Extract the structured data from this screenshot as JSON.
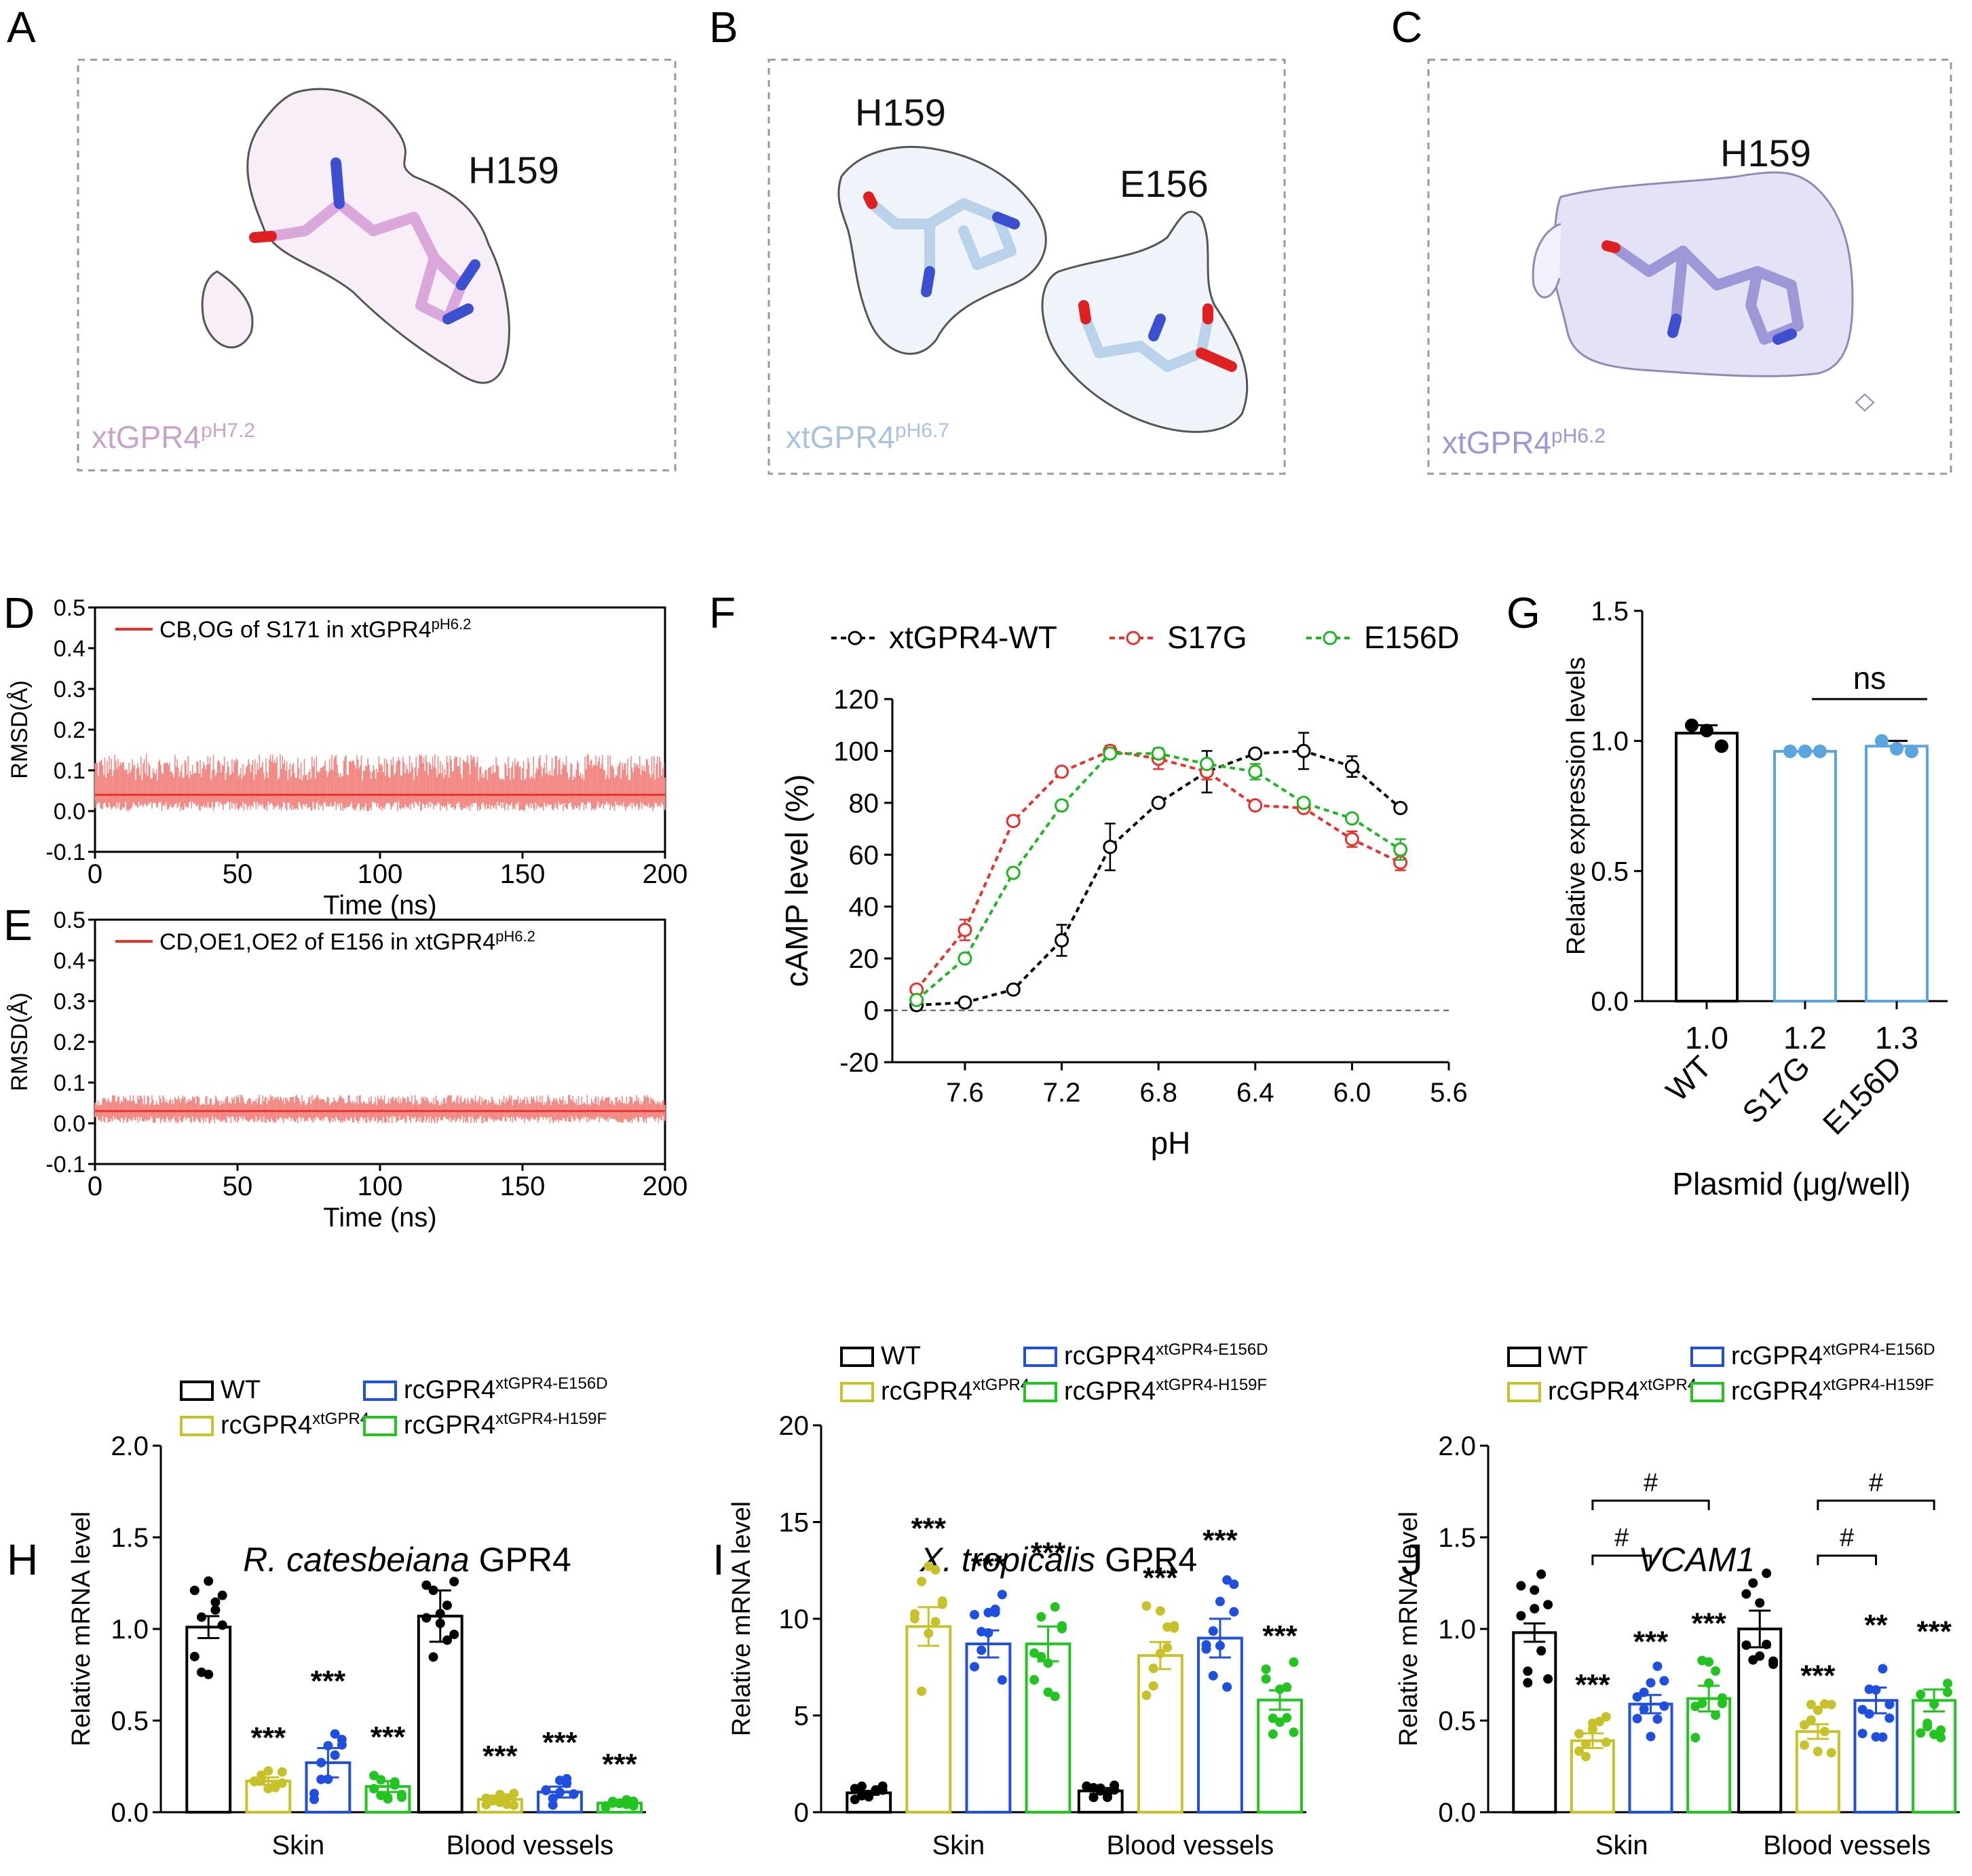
{
  "panels": {
    "A": {
      "letter": "A",
      "residue": "H159",
      "label": "xtGPR4",
      "sup": "pH7.2",
      "color": "#c9a3c9"
    },
    "B": {
      "letter": "B",
      "residues": [
        "H159",
        "E156"
      ],
      "label": "xtGPR4",
      "sup": "pH6.7",
      "color": "#a9c3dc"
    },
    "C": {
      "letter": "C",
      "residue": "H159",
      "label": "xtGPR4",
      "sup": "pH6.2",
      "color": "#9c97d6"
    }
  },
  "chart_data": [
    {
      "id": "D",
      "type": "line",
      "letter": "D",
      "xlabel": "Time (ns)",
      "ylabel": "RMSD(Å)",
      "xlim": [
        0,
        200
      ],
      "ylim": [
        -0.1,
        0.5
      ],
      "xticks": [
        0,
        50,
        100,
        150,
        200
      ],
      "yticks": [
        "-0.1",
        "0.0",
        "0.1",
        "0.2",
        "0.3",
        "0.4",
        "0.5"
      ],
      "legend": "CB,OG of S171 in xtGPR4",
      "legend_sup": "pH6.2",
      "series": [
        {
          "mean": 0.04,
          "noise_high": 0.14,
          "noise_low": 0.0,
          "color": "#e8312b"
        }
      ]
    },
    {
      "id": "E",
      "type": "line",
      "letter": "E",
      "xlabel": "Time (ns)",
      "ylabel": "RMSD(Å)",
      "xlim": [
        0,
        200
      ],
      "ylim": [
        -0.1,
        0.5
      ],
      "xticks": [
        0,
        50,
        100,
        150,
        200
      ],
      "yticks": [
        "-0.1",
        "0.0",
        "0.1",
        "0.2",
        "0.3",
        "0.4",
        "0.5"
      ],
      "legend": "CD,OE1,OE2 of E156 in xtGPR4",
      "legend_sup": "pH6.2",
      "series": [
        {
          "mean": 0.03,
          "noise_high": 0.07,
          "noise_low": 0.0,
          "color": "#e8312b"
        }
      ]
    },
    {
      "id": "F",
      "type": "line",
      "letter": "F",
      "xlabel": "pH",
      "ylabel": "cAMP level (%)",
      "xlim": [
        7.9,
        5.6
      ],
      "ylim": [
        -20,
        120
      ],
      "xticks": [
        "7.6",
        "7.2",
        "6.8",
        "6.4",
        "6.0",
        "5.6"
      ],
      "yticks": [
        "-20",
        "0",
        "20",
        "40",
        "60",
        "80",
        "100",
        "120"
      ],
      "x": [
        7.8,
        7.6,
        7.4,
        7.2,
        7.0,
        6.8,
        6.6,
        6.4,
        6.2,
        6.0,
        5.8
      ],
      "series": [
        {
          "name": "xtGPR4-WT",
          "color": "#000000",
          "values": [
            2,
            3,
            8,
            27,
            63,
            80,
            92,
            99,
            100,
            94,
            78
          ],
          "err": [
            0,
            0,
            0,
            6,
            9,
            0,
            8,
            0,
            7,
            4,
            0
          ]
        },
        {
          "name": "S17G",
          "color": "#e8312b",
          "values": [
            8,
            31,
            73,
            92,
            100,
            97,
            92,
            79,
            78,
            66,
            57
          ],
          "err": [
            0,
            4,
            0,
            0,
            2,
            4,
            3,
            0,
            0,
            3,
            3
          ]
        },
        {
          "name": "E156D",
          "color": "#22b523",
          "values": [
            4,
            20,
            53,
            79,
            99,
            99,
            95,
            92,
            80,
            74,
            62
          ],
          "err": [
            0,
            0,
            0,
            0,
            0,
            2,
            0,
            3,
            0,
            0,
            4
          ]
        }
      ]
    },
    {
      "id": "G",
      "type": "bar",
      "letter": "G",
      "xlabel": "Plasmid (μg/well)",
      "ylabel": "Relative expression levels",
      "ylim": [
        0,
        1.5
      ],
      "yticks": [
        "0.0",
        "0.5",
        "1.0",
        "1.5"
      ],
      "categories": [
        "WT",
        "S17G",
        "E156D"
      ],
      "doses": [
        "1.0",
        "1.2",
        "1.3"
      ],
      "values": [
        1.03,
        0.96,
        0.98
      ],
      "err": [
        0.03,
        0.0,
        0.02
      ],
      "points": [
        [
          1.06,
          1.04,
          0.98
        ],
        [
          0.96,
          0.96,
          0.96
        ],
        [
          1.0,
          0.97,
          0.96
        ]
      ],
      "colors": [
        "#000000",
        "#5aa5e0",
        "#5aa5e0"
      ],
      "annotation": "ns"
    },
    {
      "id": "H",
      "type": "bar",
      "letter": "H",
      "title_italic": "R. catesbeiana",
      "title_rest": " GPR4",
      "ylabel": "Relative mRNA level",
      "ylim": [
        0,
        2.0
      ],
      "yticks": [
        "0.0",
        "0.5",
        "1.0",
        "1.5",
        "2.0"
      ],
      "groups": [
        "Skin",
        "Blood vessels"
      ],
      "series": [
        {
          "name": "WT",
          "sup": "",
          "color": "#000000",
          "values": [
            1.01,
            1.07
          ],
          "err": [
            0.06,
            0.14
          ]
        },
        {
          "name": "rcGPR4",
          "sup": "xtGPR4",
          "color": "#c8c22a",
          "values": [
            0.17,
            0.07
          ],
          "err": [
            0.02,
            0.02
          ]
        },
        {
          "name": "rcGPR4",
          "sup": "xtGPR4-E156D",
          "color": "#1f4fe0",
          "values": [
            0.27,
            0.11
          ],
          "err": [
            0.08,
            0.03
          ]
        },
        {
          "name": "rcGPR4",
          "sup": "xtGPR4-H159F",
          "color": "#22c41f",
          "values": [
            0.14,
            0.05
          ],
          "err": [
            0.03,
            0.01
          ]
        }
      ],
      "sig": [
        [
          "",
          "***",
          "***",
          "***"
        ],
        [
          "",
          "***",
          "***",
          "***"
        ]
      ]
    },
    {
      "id": "I",
      "type": "bar",
      "letter": "I",
      "title_italic": "X. tropicalis",
      "title_rest": " GPR4",
      "ylabel": "Relative mRNA level",
      "ylim": [
        0,
        20
      ],
      "yticks": [
        "0",
        "5",
        "10",
        "15",
        "20"
      ],
      "groups": [
        "Skin",
        "Blood vessels"
      ],
      "series": [
        {
          "name": "WT",
          "sup": "",
          "color": "#000000",
          "values": [
            1.0,
            1.1
          ],
          "err": [
            0.1,
            0.15
          ]
        },
        {
          "name": "rcGPR4",
          "sup": "xtGPR4",
          "color": "#c8c22a",
          "values": [
            9.6,
            8.1
          ],
          "err": [
            1.0,
            0.7
          ]
        },
        {
          "name": "rcGPR4",
          "sup": "xtGPR4-E156D",
          "color": "#1f4fe0",
          "values": [
            8.7,
            9.0
          ],
          "err": [
            0.7,
            1.0
          ]
        },
        {
          "name": "rcGPR4",
          "sup": "xtGPR4-H159F",
          "color": "#22c41f",
          "values": [
            8.7,
            5.8
          ],
          "err": [
            0.9,
            0.5
          ]
        }
      ],
      "sig": [
        [
          "",
          "***",
          "***",
          "***"
        ],
        [
          "",
          "***",
          "***",
          "***"
        ]
      ]
    },
    {
      "id": "J",
      "type": "bar",
      "letter": "J",
      "title_italic": "VCAM1",
      "title_rest": "",
      "ylabel": "Relative mRNA level",
      "ylim": [
        0,
        2.0
      ],
      "yticks": [
        "0.0",
        "0.5",
        "1.0",
        "1.5",
        "2.0"
      ],
      "groups": [
        "Skin",
        "Blood vessels"
      ],
      "series": [
        {
          "name": "WT",
          "sup": "",
          "color": "#000000",
          "values": [
            0.98,
            1.0
          ],
          "err": [
            0.05,
            0.1
          ]
        },
        {
          "name": "rcGPR4",
          "sup": "xtGPR4",
          "color": "#c8c22a",
          "values": [
            0.39,
            0.44
          ],
          "err": [
            0.04,
            0.04
          ]
        },
        {
          "name": "rcGPR4",
          "sup": "xtGPR4-E156D",
          "color": "#1f4fe0",
          "values": [
            0.59,
            0.61
          ],
          "err": [
            0.05,
            0.07
          ]
        },
        {
          "name": "rcGPR4",
          "sup": "xtGPR4-H159F",
          "color": "#22c41f",
          "values": [
            0.62,
            0.61
          ],
          "err": [
            0.07,
            0.06
          ]
        }
      ],
      "sig": [
        [
          "",
          "***",
          "***",
          "***"
        ],
        [
          "",
          "***",
          "**",
          "***"
        ]
      ],
      "brackets": [
        "#",
        "#"
      ]
    }
  ]
}
